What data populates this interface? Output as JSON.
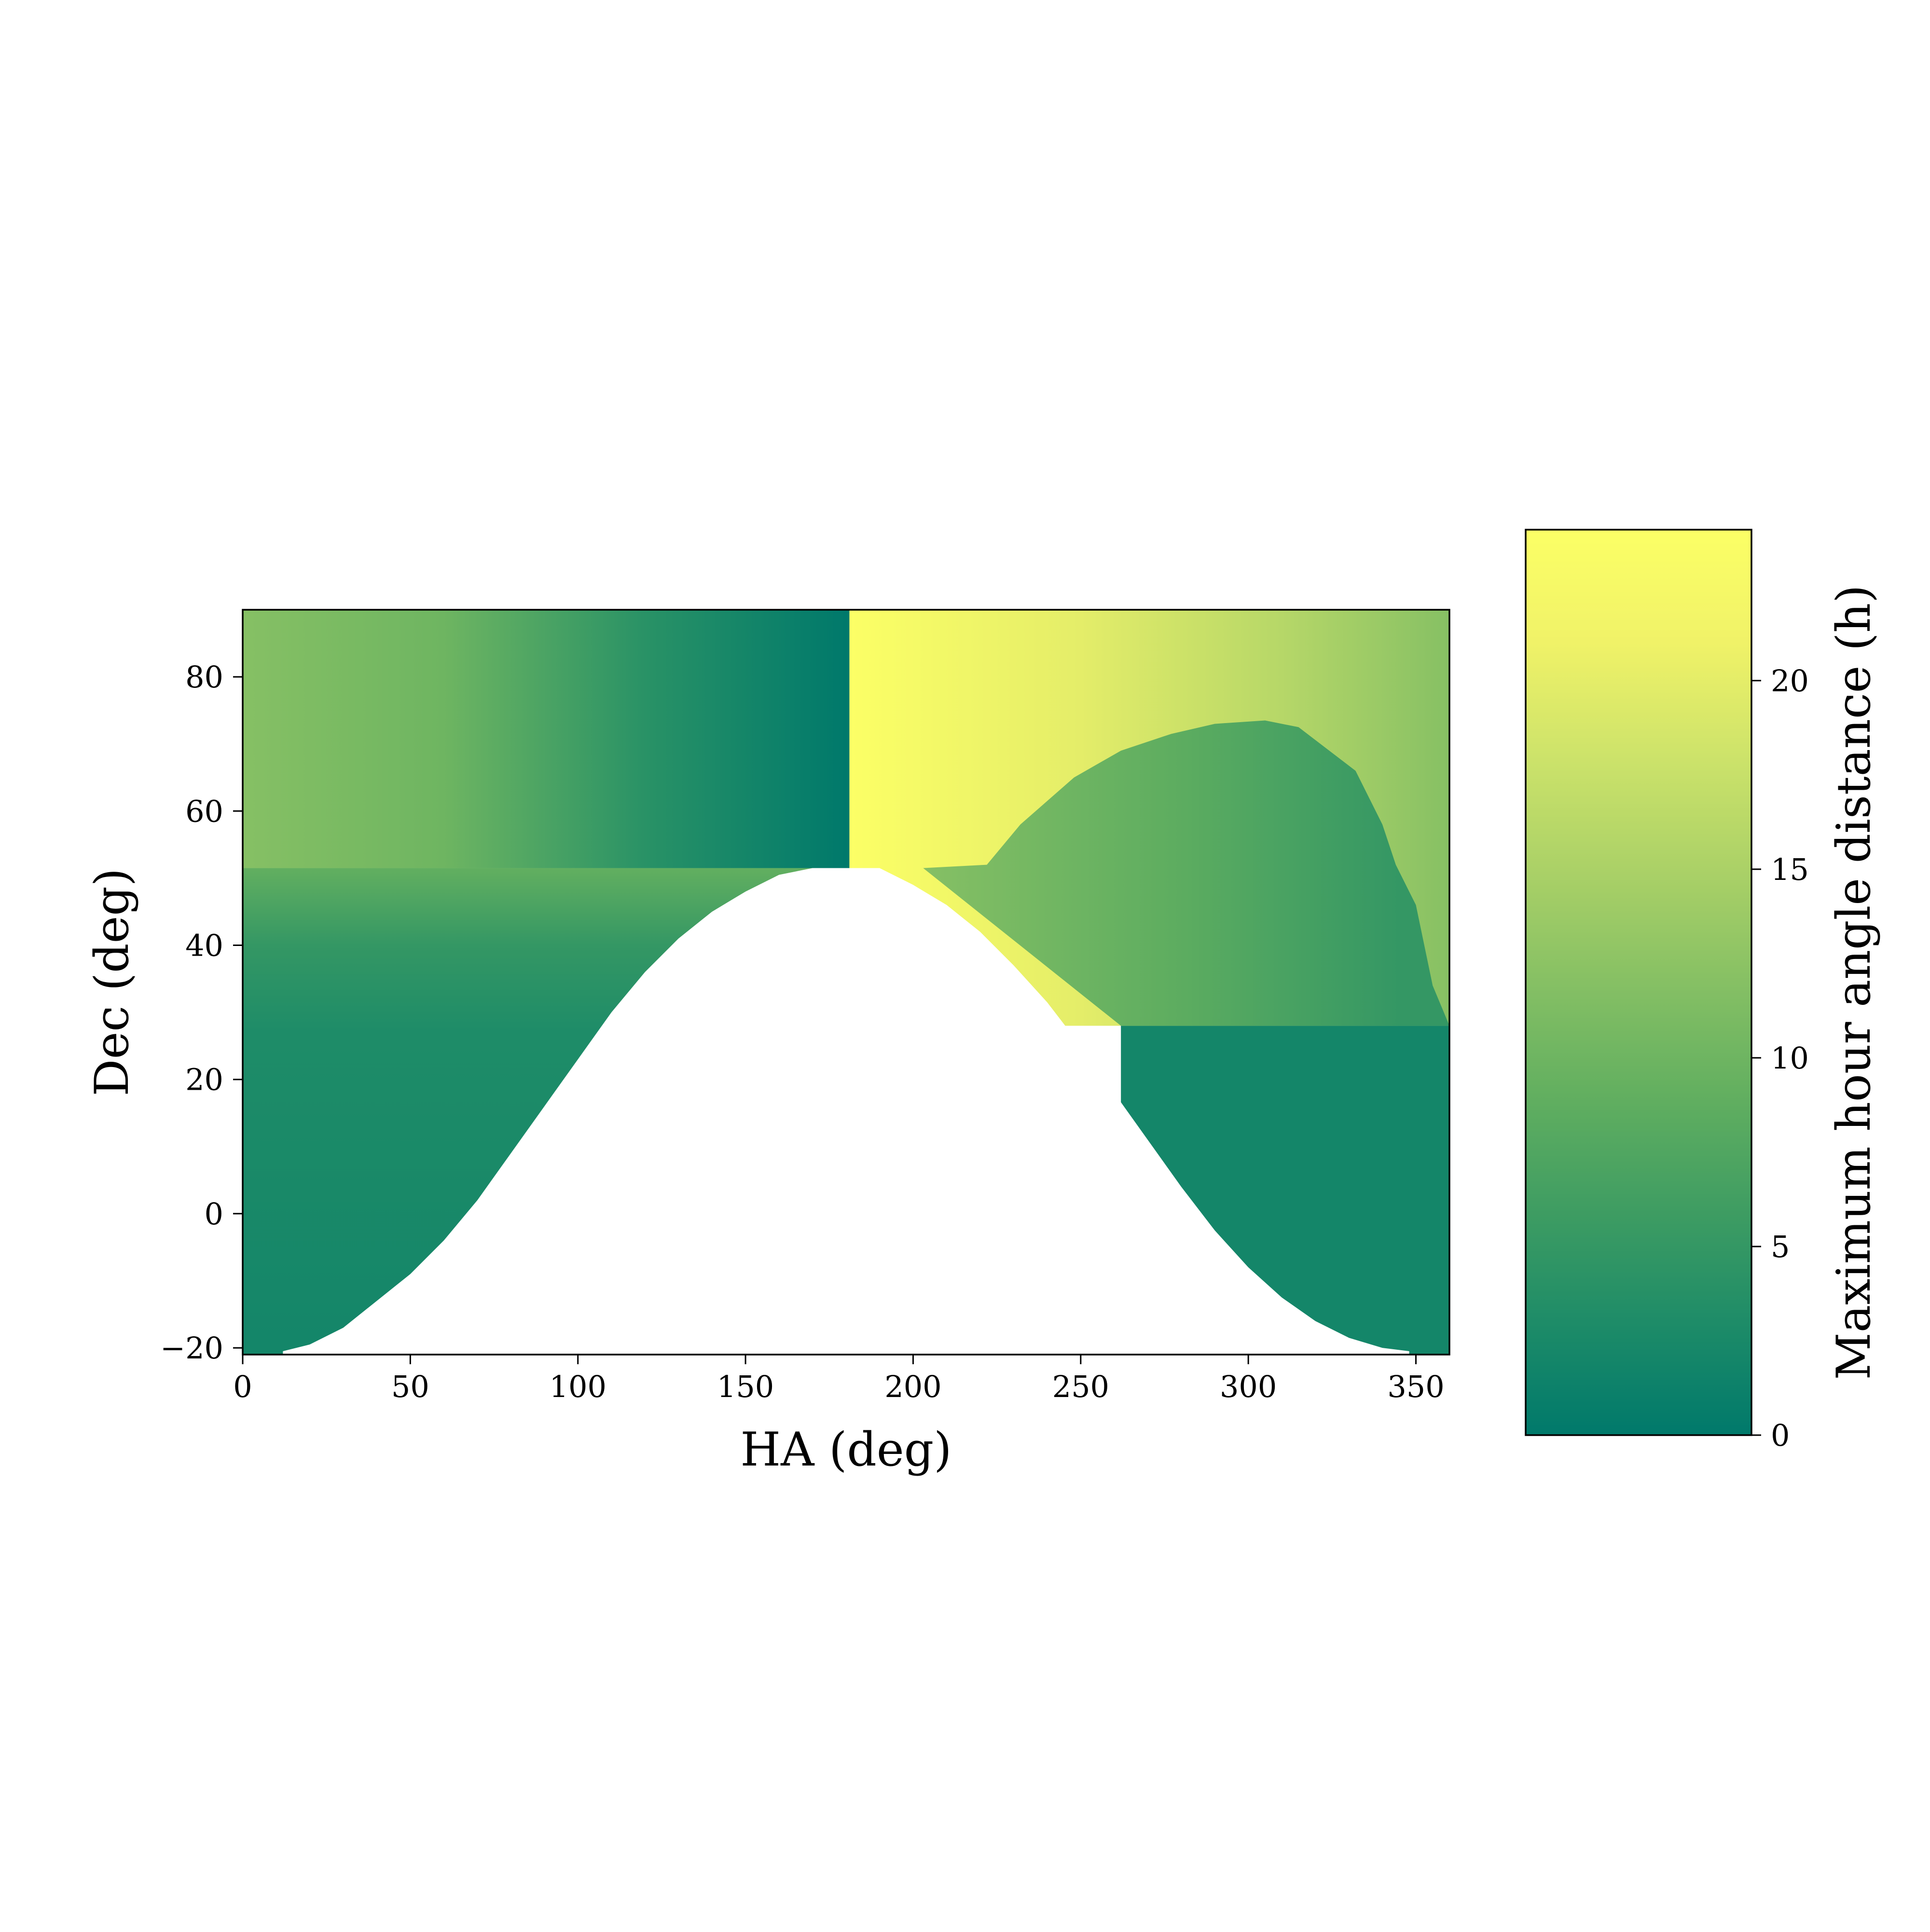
{
  "chart_data": {
    "type": "heatmap",
    "xlabel": "HA (deg)",
    "ylabel": "Dec (deg)",
    "xlim": [
      0,
      360
    ],
    "ylim": [
      -21,
      90
    ],
    "xticks": [
      0,
      50,
      100,
      150,
      200,
      250,
      300,
      350
    ],
    "yticks": [
      -20,
      0,
      20,
      40,
      60,
      80
    ],
    "colorbar": {
      "label": "Maximum hour angle distance (h)",
      "range": [
        0,
        24
      ],
      "ticks": [
        0,
        5,
        10,
        15,
        20
      ],
      "colormap": [
        "#00796b",
        "#1e8c68",
        "#3f9d62",
        "#62af60",
        "#86c064",
        "#abd167",
        "#cde36a",
        "#f0f268",
        "#fcff66"
      ]
    },
    "regions": {
      "masked_color": "#ffffff",
      "masked_boundary": {
        "ha": [
          12,
          20,
          30,
          40,
          50,
          60,
          70,
          80,
          90,
          100,
          110,
          120,
          130,
          140,
          150,
          160,
          170,
          180,
          190,
          200,
          210,
          220,
          230,
          240,
          250,
          260,
          270,
          280,
          290,
          300,
          310,
          320,
          330,
          340,
          348
        ],
        "dec": [
          -20.5,
          -19.5,
          -17,
          -13,
          -9,
          -4,
          2,
          9,
          16,
          23,
          30,
          36,
          41,
          45,
          48,
          50.5,
          51.5,
          51.5,
          51.5,
          49,
          46,
          42,
          37,
          31.5,
          25,
          18,
          11,
          4,
          -2.5,
          -8,
          -12.5,
          -16,
          -18.5,
          -20,
          -20.5
        ]
      },
      "upper_left_band": {
        "ha_range": [
          0,
          181
        ],
        "dec_range": [
          51.5,
          90
        ],
        "values_h_at_ha": [
          [
            0,
            12
          ],
          [
            60,
            10
          ],
          [
            120,
            4
          ],
          [
            180,
            0
          ]
        ]
      },
      "upper_right_band": {
        "ha_range": [
          181,
          360
        ],
        "dec_range": [
          51.5,
          90
        ],
        "values_h_at_ha": [
          [
            181,
            24
          ],
          [
            250,
            20
          ],
          [
            310,
            16
          ],
          [
            360,
            12
          ]
        ]
      },
      "left_lower_band": {
        "ha_range": [
          0,
          181
        ],
        "dec_range": [
          -21,
          51.5
        ],
        "values_h_at_dec": [
          [
            51.5,
            9
          ],
          [
            40,
            5
          ],
          [
            27,
            3
          ],
          [
            -20,
            2
          ]
        ]
      },
      "right_lobe": {
        "ha": [
          203,
          222,
          232,
          248,
          262,
          277,
          290,
          305,
          315,
          332,
          340,
          344,
          350,
          355,
          360
        ],
        "dec": [
          51.5,
          52,
          58,
          65,
          69,
          71.5,
          73,
          73.5,
          72.5,
          66,
          58,
          52,
          46,
          34,
          28
        ],
        "value_h_range": [
          5,
          12
        ]
      },
      "right_lower_band": {
        "ha_range": [
          262,
          360
        ],
        "dec_range": [
          -21,
          28
        ],
        "value_h": 2
      }
    }
  }
}
